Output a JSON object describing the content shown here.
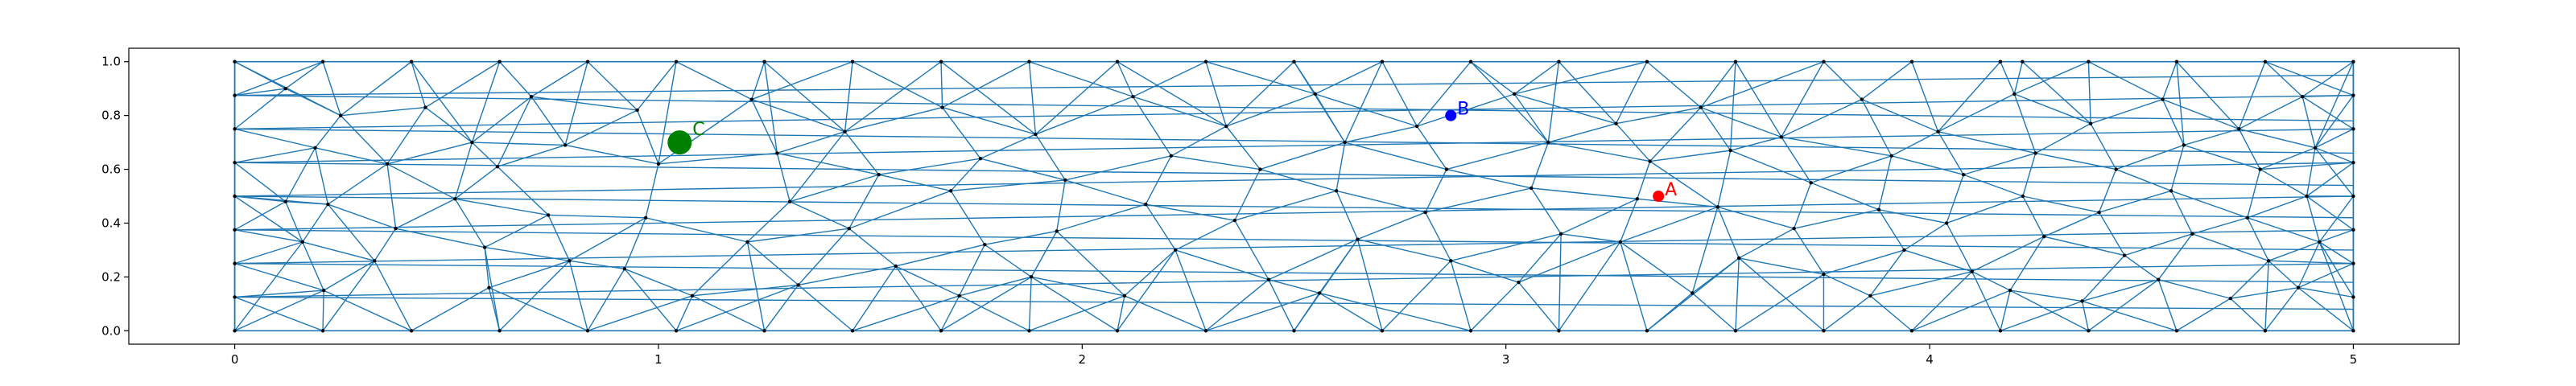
{
  "chart_data": {
    "type": "scatter",
    "title": "",
    "xlabel": "",
    "ylabel": "",
    "xlim": [
      -0.25,
      5.25
    ],
    "ylim": [
      -0.05,
      1.05
    ],
    "grid": false,
    "x_ticks": [
      "0",
      "1",
      "2",
      "3",
      "4",
      "5"
    ],
    "y_ticks": [
      "0.0",
      "0.2",
      "0.4",
      "0.6",
      "0.8",
      "1.0"
    ],
    "mesh_color": "#1f77b4",
    "node_color": "#000000",
    "mesh_nodes": {
      "y0": [
        0,
        0.208,
        0.417,
        0.625,
        0.833,
        1.042,
        1.25,
        1.458,
        1.667,
        1.875,
        2.083,
        2.292,
        2.5,
        2.708,
        2.917,
        3.125,
        3.333,
        3.542,
        3.75,
        3.958,
        4.167,
        4.375,
        4.583,
        4.792,
        5
      ],
      "y1": [
        0,
        0.208,
        0.417,
        0.625,
        0.833,
        1.042,
        1.25,
        1.458,
        1.667,
        1.875,
        2.083,
        2.292,
        2.5,
        2.708,
        2.917,
        3.125,
        3.333,
        3.542,
        3.75,
        3.958,
        4.167,
        4.219,
        4.375,
        4.583,
        4.792,
        5
      ],
      "left_edge_y": [
        0,
        0.125,
        0.25,
        0.375,
        0.5,
        0.625,
        0.75,
        0.875,
        1
      ],
      "right_edge_y": [
        0,
        0.125,
        0.25,
        0.375,
        0.5,
        0.625,
        0.75,
        0.875,
        1
      ],
      "interior": [
        [
          0.12,
          0.9
        ],
        [
          0.25,
          0.8
        ],
        [
          0.19,
          0.68
        ],
        [
          0.36,
          0.62
        ],
        [
          0.22,
          0.47
        ],
        [
          0.38,
          0.38
        ],
        [
          0.16,
          0.33
        ],
        [
          0.33,
          0.26
        ],
        [
          0.21,
          0.15
        ],
        [
          0.12,
          0.48
        ],
        [
          0.45,
          0.83
        ],
        [
          0.56,
          0.7
        ],
        [
          0.52,
          0.49
        ],
        [
          0.62,
          0.61
        ],
        [
          0.59,
          0.31
        ],
        [
          0.7,
          0.87
        ],
        [
          0.78,
          0.69
        ],
        [
          0.74,
          0.43
        ],
        [
          0.79,
          0.26
        ],
        [
          0.6,
          0.16
        ],
        [
          0.95,
          0.82
        ],
        [
          1.0,
          0.62
        ],
        [
          0.97,
          0.42
        ],
        [
          0.92,
          0.23
        ],
        [
          1.08,
          0.13
        ],
        [
          1.22,
          0.86
        ],
        [
          1.28,
          0.66
        ],
        [
          1.31,
          0.48
        ],
        [
          1.21,
          0.33
        ],
        [
          1.33,
          0.17
        ],
        [
          1.44,
          0.74
        ],
        [
          1.52,
          0.58
        ],
        [
          1.45,
          0.38
        ],
        [
          1.56,
          0.24
        ],
        [
          1.67,
          0.83
        ],
        [
          1.76,
          0.64
        ],
        [
          1.69,
          0.52
        ],
        [
          1.77,
          0.32
        ],
        [
          1.71,
          0.13
        ],
        [
          1.89,
          0.73
        ],
        [
          1.96,
          0.56
        ],
        [
          1.94,
          0.37
        ],
        [
          1.88,
          0.2
        ],
        [
          2.12,
          0.87
        ],
        [
          2.21,
          0.65
        ],
        [
          2.15,
          0.47
        ],
        [
          2.22,
          0.3
        ],
        [
          2.1,
          0.13
        ],
        [
          2.34,
          0.76
        ],
        [
          2.42,
          0.6
        ],
        [
          2.36,
          0.41
        ],
        [
          2.44,
          0.19
        ],
        [
          2.55,
          0.88
        ],
        [
          2.62,
          0.7
        ],
        [
          2.6,
          0.52
        ],
        [
          2.65,
          0.34
        ],
        [
          2.56,
          0.14
        ],
        [
          2.79,
          0.76
        ],
        [
          2.86,
          0.6
        ],
        [
          2.81,
          0.44
        ],
        [
          2.87,
          0.26
        ],
        [
          3.02,
          0.88
        ],
        [
          3.1,
          0.7
        ],
        [
          3.06,
          0.53
        ],
        [
          3.13,
          0.36
        ],
        [
          3.03,
          0.18
        ],
        [
          3.26,
          0.77
        ],
        [
          3.31,
          0.49
        ],
        [
          3.34,
          0.63
        ],
        [
          3.27,
          0.33
        ],
        [
          3.46,
          0.83
        ],
        [
          3.53,
          0.67
        ],
        [
          3.5,
          0.46
        ],
        [
          3.55,
          0.27
        ],
        [
          3.44,
          0.14
        ],
        [
          3.65,
          0.72
        ],
        [
          3.72,
          0.55
        ],
        [
          3.68,
          0.38
        ],
        [
          3.75,
          0.21
        ],
        [
          3.84,
          0.86
        ],
        [
          3.91,
          0.65
        ],
        [
          3.88,
          0.45
        ],
        [
          3.94,
          0.3
        ],
        [
          3.86,
          0.13
        ],
        [
          4.02,
          0.74
        ],
        [
          4.08,
          0.58
        ],
        [
          4.04,
          0.4
        ],
        [
          4.1,
          0.22
        ],
        [
          4.2,
          0.88
        ],
        [
          4.25,
          0.66
        ],
        [
          4.22,
          0.5
        ],
        [
          4.27,
          0.35
        ],
        [
          4.19,
          0.15
        ],
        [
          4.38,
          0.77
        ],
        [
          4.44,
          0.6
        ],
        [
          4.4,
          0.44
        ],
        [
          4.46,
          0.28
        ],
        [
          4.36,
          0.11
        ],
        [
          4.55,
          0.86
        ],
        [
          4.6,
          0.69
        ],
        [
          4.57,
          0.52
        ],
        [
          4.62,
          0.36
        ],
        [
          4.54,
          0.19
        ],
        [
          4.73,
          0.75
        ],
        [
          4.78,
          0.6
        ],
        [
          4.75,
          0.42
        ],
        [
          4.8,
          0.26
        ],
        [
          4.71,
          0.12
        ],
        [
          4.88,
          0.87
        ],
        [
          4.91,
          0.68
        ],
        [
          4.89,
          0.5
        ],
        [
          4.92,
          0.33
        ],
        [
          4.87,
          0.16
        ]
      ],
      "cross_lines": [
        [
          [
            0,
            0.875
          ],
          [
            5,
            0.95
          ]
        ],
        [
          [
            0,
            0.75
          ],
          [
            5,
            0.875
          ]
        ],
        [
          [
            0,
            0.625
          ],
          [
            5,
            0.75
          ]
        ],
        [
          [
            0,
            0.5
          ],
          [
            5,
            0.625
          ]
        ],
        [
          [
            0,
            0.375
          ],
          [
            5,
            0.5
          ]
        ],
        [
          [
            0,
            0.25
          ],
          [
            5,
            0.375
          ]
        ],
        [
          [
            0,
            0.125
          ],
          [
            5,
            0.25
          ]
        ],
        [
          [
            0,
            0.875
          ],
          [
            5,
            0.78
          ]
        ],
        [
          [
            0,
            0.75
          ],
          [
            5,
            0.66
          ]
        ],
        [
          [
            0,
            0.625
          ],
          [
            5,
            0.54
          ]
        ],
        [
          [
            0,
            0.5
          ],
          [
            5,
            0.42
          ]
        ],
        [
          [
            0,
            0.375
          ],
          [
            5,
            0.3
          ]
        ],
        [
          [
            0,
            0.25
          ],
          [
            5,
            0.18
          ]
        ],
        [
          [
            0,
            0.125
          ],
          [
            5,
            0.08
          ]
        ]
      ]
    },
    "points": [
      {
        "label": "A",
        "x": 3.36,
        "y": 0.5,
        "color": "#ff0000",
        "size": "small"
      },
      {
        "label": "B",
        "x": 2.87,
        "y": 0.8,
        "color": "#0000ff",
        "size": "small"
      },
      {
        "label": "C",
        "x": 1.05,
        "y": 0.7,
        "color": "#008000",
        "size": "large"
      }
    ]
  }
}
